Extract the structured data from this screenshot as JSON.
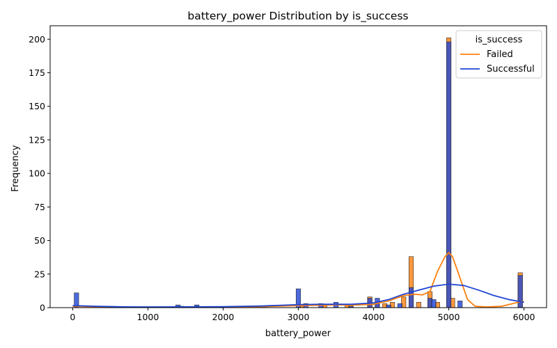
{
  "chart_data": {
    "type": "histogram",
    "title": "battery_power Distribution by is_success",
    "xlabel": "battery_power",
    "ylabel": "Frequency",
    "xlim": [
      -300,
      6300
    ],
    "ylim": [
      0,
      210
    ],
    "xticks": [
      0,
      1000,
      2000,
      3000,
      4000,
      5000,
      6000
    ],
    "yticks": [
      0,
      25,
      50,
      75,
      100,
      125,
      150,
      175,
      200
    ],
    "bin_width": 60,
    "legend": {
      "title": "is_success",
      "position": "top-right",
      "entries": [
        "Failed",
        "Successful"
      ]
    },
    "series": [
      {
        "name": "Failed",
        "color": "#ff7f0e",
        "bars": [
          {
            "x": 50,
            "y": 1
          },
          {
            "x": 1450,
            "y": 1
          },
          {
            "x": 1650,
            "y": 1
          },
          {
            "x": 2550,
            "y": 1
          },
          {
            "x": 3050,
            "y": 2
          },
          {
            "x": 3350,
            "y": 2
          },
          {
            "x": 3650,
            "y": 2
          },
          {
            "x": 3700,
            "y": 2
          },
          {
            "x": 3950,
            "y": 8
          },
          {
            "x": 4050,
            "y": 3
          },
          {
            "x": 4150,
            "y": 3
          },
          {
            "x": 4250,
            "y": 4
          },
          {
            "x": 4400,
            "y": 8
          },
          {
            "x": 4500,
            "y": 38
          },
          {
            "x": 4600,
            "y": 4
          },
          {
            "x": 4750,
            "y": 12
          },
          {
            "x": 4850,
            "y": 4
          },
          {
            "x": 5000,
            "y": 201
          },
          {
            "x": 5050,
            "y": 7
          },
          {
            "x": 5950,
            "y": 26
          }
        ],
        "kde": [
          [
            0,
            1
          ],
          [
            500,
            0.5
          ],
          [
            1000,
            0.2
          ],
          [
            1500,
            0.2
          ],
          [
            2000,
            0.3
          ],
          [
            2500,
            0.7
          ],
          [
            3000,
            1.5
          ],
          [
            3500,
            2
          ],
          [
            3800,
            2
          ],
          [
            4000,
            2.5
          ],
          [
            4200,
            5
          ],
          [
            4400,
            9
          ],
          [
            4550,
            10
          ],
          [
            4650,
            9.5
          ],
          [
            4750,
            12
          ],
          [
            4850,
            27
          ],
          [
            4950,
            38
          ],
          [
            5000,
            41
          ],
          [
            5050,
            38
          ],
          [
            5150,
            22
          ],
          [
            5250,
            6
          ],
          [
            5350,
            1
          ],
          [
            5500,
            0.5
          ],
          [
            5700,
            1
          ],
          [
            5850,
            3
          ],
          [
            5950,
            4.5
          ],
          [
            6000,
            4.5
          ]
        ]
      },
      {
        "name": "Successful",
        "color": "#1f45d4",
        "bars": [
          {
            "x": 50,
            "y": 11
          },
          {
            "x": 1400,
            "y": 2
          },
          {
            "x": 1650,
            "y": 2
          },
          {
            "x": 2550,
            "y": 1
          },
          {
            "x": 3000,
            "y": 14
          },
          {
            "x": 3100,
            "y": 3
          },
          {
            "x": 3300,
            "y": 3
          },
          {
            "x": 3500,
            "y": 4
          },
          {
            "x": 3700,
            "y": 1
          },
          {
            "x": 3950,
            "y": 7
          },
          {
            "x": 4050,
            "y": 7
          },
          {
            "x": 4200,
            "y": 2
          },
          {
            "x": 4350,
            "y": 3
          },
          {
            "x": 4500,
            "y": 15
          },
          {
            "x": 4750,
            "y": 7
          },
          {
            "x": 4800,
            "y": 6
          },
          {
            "x": 5000,
            "y": 198
          },
          {
            "x": 5150,
            "y": 5
          },
          {
            "x": 5950,
            "y": 24
          }
        ],
        "kde": [
          [
            0,
            1.5
          ],
          [
            300,
            1
          ],
          [
            700,
            0.6
          ],
          [
            1000,
            0.5
          ],
          [
            1500,
            0.6
          ],
          [
            2000,
            0.7
          ],
          [
            2500,
            1.2
          ],
          [
            3000,
            2.2
          ],
          [
            3300,
            2.5
          ],
          [
            3700,
            2.5
          ],
          [
            4000,
            3.5
          ],
          [
            4200,
            6
          ],
          [
            4400,
            10
          ],
          [
            4600,
            13
          ],
          [
            4800,
            16
          ],
          [
            5000,
            17.5
          ],
          [
            5200,
            16.5
          ],
          [
            5400,
            13
          ],
          [
            5600,
            9
          ],
          [
            5800,
            6
          ],
          [
            6000,
            4
          ]
        ]
      }
    ]
  }
}
